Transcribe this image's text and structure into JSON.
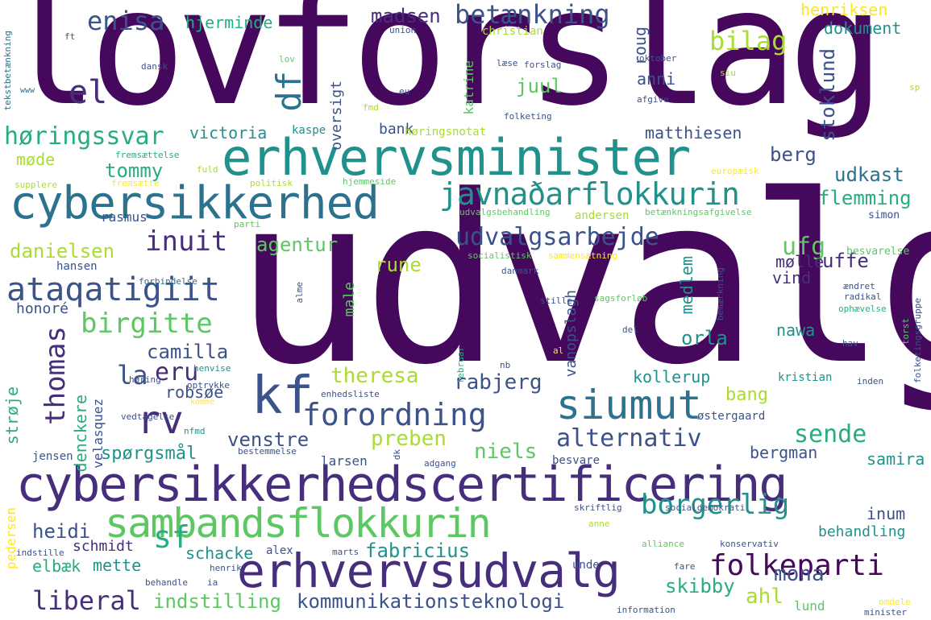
{
  "palette": {
    "dark_purple": "#46085c",
    "purple": "#472e7c",
    "indigo": "#3b528b",
    "blue": "#2c728e",
    "teal": "#21918c",
    "green_teal": "#27ad81",
    "green": "#5dc863",
    "yellow_green": "#aadc32",
    "yellow": "#fde725"
  },
  "words": {
    "udvalg": "udvalg",
    "lovforslag": "lovforslag",
    "cybersikkerhedscertificering": "cybersikkerhedscertificering",
    "erhvervsminister": "erhvervsminister",
    "cybersikkerhed": "cybersikkerhed",
    "erhvervsudvalg": "erhvervsudvalg",
    "sambandsflokkurin": "sambandsflokkurin",
    "javnadarflokkurin": "javnaðarflokkurin",
    "siumut": "siumut",
    "kf": "kf",
    "forordning": "forordning",
    "ataqatigiit": "ataqatigiit",
    "udvalgsarbejde": "udvalgsarbejde",
    "betaenkning": "betænkning",
    "folkeparti": "folkeparti",
    "alternativ": "alternativ",
    "borgerlig": "borgerlig",
    "inuit": "inuit",
    "thomas": "thomas",
    "rv": "rv",
    "df": "df",
    "el": "el",
    "birgitte": "birgitte",
    "sf": "sf",
    "horingssvar": "høringssvar",
    "liberal": "liberal",
    "enisa": "enisa",
    "bilag": "bilag",
    "sende": "sende",
    "ufg": "ufg",
    "fabricius": "fabricius",
    "kommunikationsteknologi": "kommunikationsteknologi",
    "indstilling": "indstilling",
    "agentur": "agentur",
    "stoklund": "stoklund",
    "la": "la",
    "eru": "eru",
    "camilla": "camilla",
    "rabjerg": "rabjerg",
    "theresa": "theresa",
    "niels": "niels",
    "preben": "preben",
    "venstre": "venstre",
    "madsen": "madsen",
    "juul": "juul",
    "heidi": "heidi",
    "mona": "mona",
    "skibby": "skibby",
    "ahl": "ahl",
    "uffe": "uffe",
    "rune": "rune",
    "flemming": "flemming",
    "udkast": "udkast",
    "berg": "berg",
    "orla": "orla",
    "tommy": "tommy",
    "danielsen": "danielsen",
    "spoergsmaal": "spørgsmål",
    "victoria": "victoria",
    "matthiesen": "matthiesen",
    "henriksen": "henriksen",
    "dokument": "dokument",
    "hjerminde": "hjerminde",
    "robsoe": "robsøe",
    "schacke": "schacke",
    "mette": "mette",
    "elbaek": "elbæk",
    "schmidt": "schmidt",
    "bergman": "bergman",
    "samira": "samira",
    "inum": "inum",
    "behandling": "behandling",
    "kollerup": "kollerup",
    "bang": "bang",
    "anni": "anni",
    "moede": "møde",
    "roug": "roug",
    "medlem": "medlem",
    "moelle": "mølle",
    "vind": "vind",
    "nawa": "nawa",
    "male": "male",
    "denckere": "denckere",
    "velasquez": "velasquez",
    "stroeje": "strøje",
    "honore": "honoré",
    "rasmus": "rasmus",
    "lund": "lund",
    "vanopslagh": "vanopslagh",
    "bank": "bank",
    "oversigt": "oversigt",
    "katrine": "katrine",
    "christian": "christian",
    "andersen": "andersen",
    "larsen": "larsen",
    "jensen": "jensen",
    "hansen": "hansen",
    "pedersen": "pedersen",
    "alex": "alex",
    "unde": "unde",
    "kristian": "kristian",
    "oestergaard": "østergaard",
    "besvare": "besvare",
    "kaspe": "kaspe",
    "horingsnotat": "høringsnotat",
    "simon": "simon",
    "besvarelse": "besvarelse",
    "tekstbetaenkning": "tekstbetænkning",
    "ft": "ft",
    "union": "union",
    "forslag": "forslag",
    "oktober": "oktober",
    "siu": "siu",
    "laese": "læse",
    "eu": "eu",
    "afgive": "afgive",
    "folketing": "folketing",
    "fmd": "fmd",
    "dansk": "dansk",
    "lov": "lov",
    "www": "www",
    "sp": "sp",
    "fremsaettelse": "fremsættelse",
    "fremsaette": "fremsætte",
    "supplere": "supplere",
    "politisk": "politisk",
    "fuld": "fuld",
    "hjemmeside": "hjemmeside",
    "europaeisk": "europæisk",
    "udvalgsbehandling": "udvalgsbehandling",
    "betaenkningsafgivelse": "betænkningsafgivelse",
    "parti": "parti",
    "socialistisk": "socialistisk",
    "sammensaetning": "sammensætning",
    "forbindelse": "forbindelse",
    "danmark": "danmark",
    "alme": "alme",
    "stille": "stille",
    "sagsforloeb": "sagsforløb",
    "februar": "februar",
    "del": "del",
    "nb": "nb",
    "al": "al",
    "bemaerkning": "bemærkning",
    "aendret": "ændret",
    "radikal": "radikal",
    "ophaevelse": "ophævelse",
    "folketingsgruppe": "folketingsgruppe",
    "torst": "torst",
    "hav": "hav",
    "henvise": "henvise",
    "hoering": "høring",
    "enhedsliste": "enhedsliste",
    "optrykke": "optrykke",
    "komme": "komme",
    "vedtagelse": "vedtagelse",
    "nfmd": "nfmd",
    "bestemmelse": "bestemmelse",
    "dk": "dk",
    "adgang": "adgang",
    "inden": "inden",
    "skriftlig": "skriftlig",
    "socialdemokrati": "socialdemokrati",
    "anne": "anne",
    "marts": "marts",
    "alliance": "alliance",
    "konservativ": "konservativ",
    "indstille": "indstille",
    "henrik": "henrik",
    "behandle": "behandle",
    "ia": "ia",
    "fare": "fare",
    "information": "information",
    "omdele": "omdele",
    "minister": "minister"
  }
}
